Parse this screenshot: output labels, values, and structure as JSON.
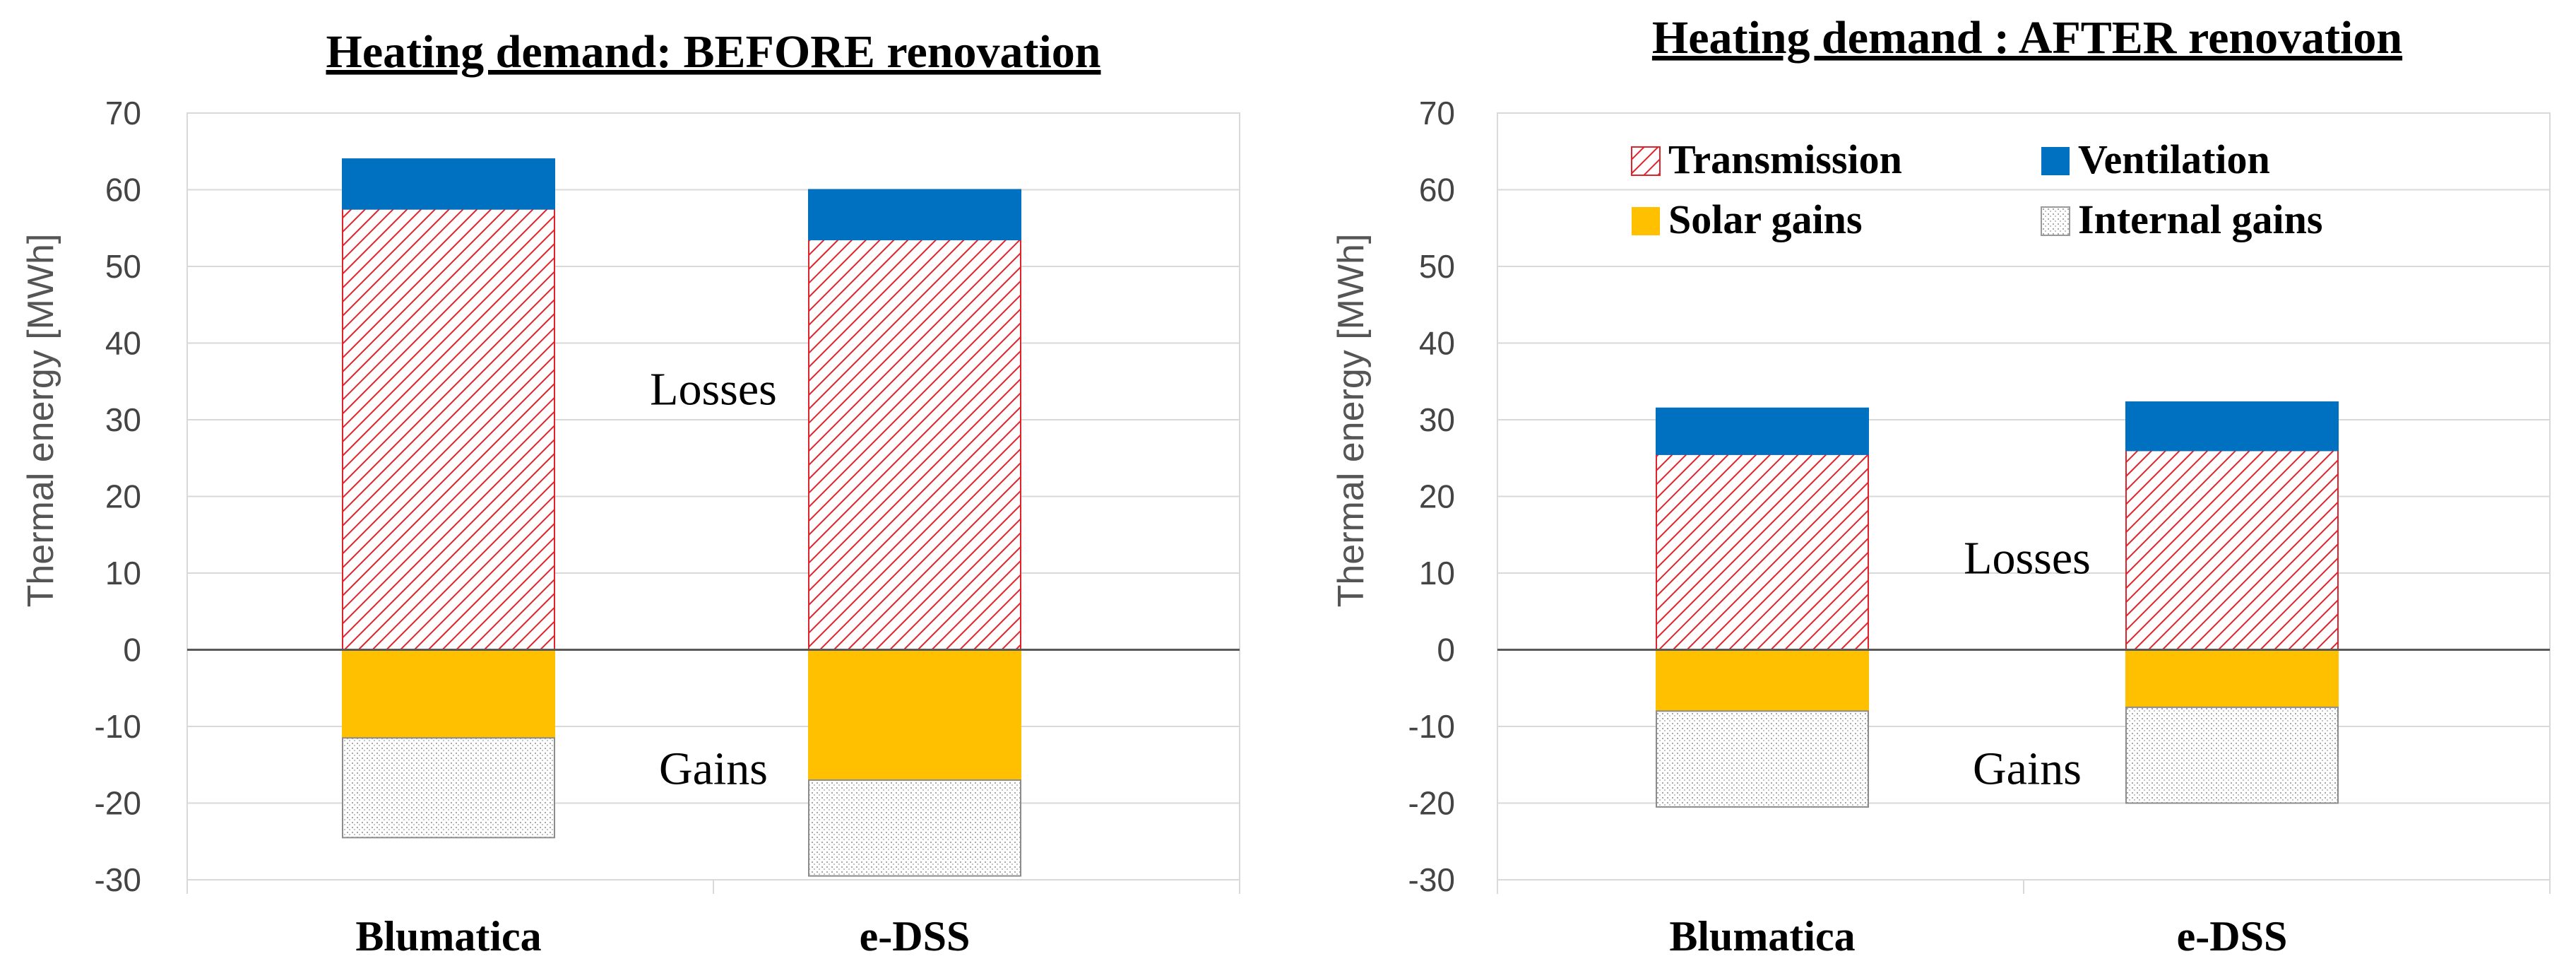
{
  "chart_data": [
    {
      "type": "bar",
      "stacked": true,
      "title": "Heating demand: BEFORE renovation",
      "xlabel": "",
      "ylabel": "Thermal energy [MWh]",
      "ylim": [
        -30,
        70
      ],
      "yticks": [
        70,
        60,
        50,
        40,
        30,
        20,
        10,
        0,
        -10,
        -20,
        -30
      ],
      "grid": true,
      "categories": [
        "Blumatica",
        "e-DSS"
      ],
      "series": [
        {
          "name": "Transmission",
          "values": [
            57.5,
            53.5
          ]
        },
        {
          "name": "Ventilation",
          "values": [
            6.5,
            6.5
          ]
        },
        {
          "name": "Solar gains",
          "values": [
            -11.5,
            -17.0
          ]
        },
        {
          "name": "Internal gains",
          "values": [
            -13.0,
            -12.5
          ]
        }
      ],
      "annotations": [
        {
          "text": "Losses",
          "value": 34
        },
        {
          "text": "Gains",
          "value": -15.5
        }
      ],
      "legend": null
    },
    {
      "type": "bar",
      "stacked": true,
      "title": "Heating demand : AFTER renovation",
      "xlabel": "",
      "ylabel": "Thermal energy [MWh]",
      "ylim": [
        -30,
        70
      ],
      "yticks": [
        70,
        60,
        50,
        40,
        30,
        20,
        10,
        0,
        -10,
        -20,
        -30
      ],
      "grid": true,
      "categories": [
        "Blumatica",
        "e-DSS"
      ],
      "series": [
        {
          "name": "Transmission",
          "values": [
            25.5,
            26.0
          ]
        },
        {
          "name": "Ventilation",
          "values": [
            6.0,
            6.3
          ]
        },
        {
          "name": "Solar gains",
          "values": [
            -8.0,
            -7.5
          ]
        },
        {
          "name": "Internal gains",
          "values": [
            -12.5,
            -12.5
          ]
        }
      ],
      "annotations": [
        {
          "text": "Losses",
          "value": 12
        },
        {
          "text": "Gains",
          "value": -15.5
        }
      ],
      "legend": "top"
    }
  ],
  "colors": {
    "transmission_hatch": "#e0242c",
    "ventilation": "#0070c0",
    "solar_gains": "#ffc000",
    "internal_gains_dots": "#b0b0b0"
  }
}
